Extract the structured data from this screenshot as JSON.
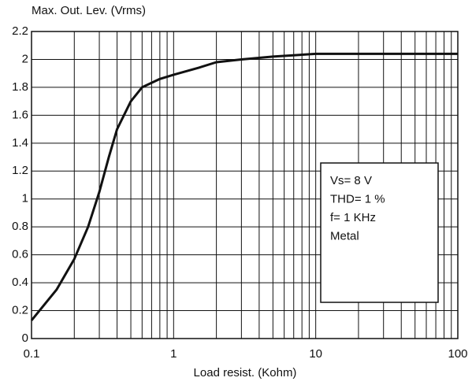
{
  "chart_data": {
    "type": "line",
    "y_label": "Max. Out. Lev. (Vrms)",
    "x_label": "Load resist. (Kohm)",
    "x": [
      0.1,
      0.15,
      0.2,
      0.25,
      0.3,
      0.35,
      0.4,
      0.5,
      0.6,
      0.8,
      1,
      1.5,
      2,
      3,
      5,
      10,
      20,
      50,
      100
    ],
    "series": [
      {
        "color": "#111111",
        "values": [
          0.13,
          0.35,
          0.57,
          0.8,
          1.05,
          1.3,
          1.5,
          1.7,
          1.8,
          1.86,
          1.89,
          1.94,
          1.98,
          2.0,
          2.02,
          2.04,
          2.04,
          2.04,
          2.04
        ]
      }
    ],
    "xlim": [
      0.1,
      100
    ],
    "ylim": [
      0,
      2.2
    ],
    "xticks": [
      0.1,
      1,
      10,
      100
    ],
    "yticks": [
      0,
      0.2,
      0.4,
      0.6,
      0.8,
      1,
      1.2,
      1.4,
      1.6,
      1.8,
      2,
      2.2
    ],
    "xscale": "log",
    "grid": true,
    "minor_grid": true,
    "annotation": [
      "Vs= 8 V",
      "THD= 1 %",
      "f= 1 KHz",
      "Metal"
    ]
  }
}
